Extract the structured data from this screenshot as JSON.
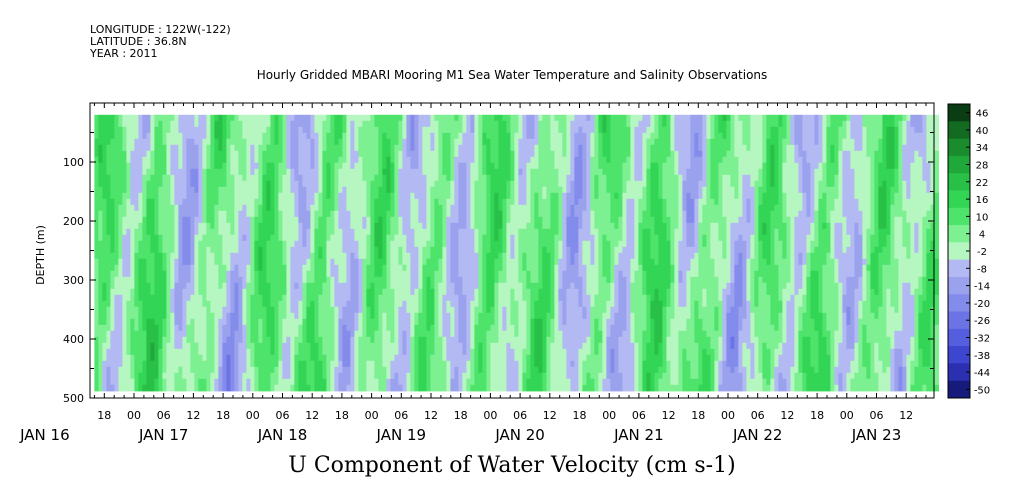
{
  "header": {
    "longitude": "LONGITUDE : 122W(-122)",
    "latitude": "LATITUDE : 36.8N",
    "year": "YEAR : 2011"
  },
  "chart_data": {
    "type": "heatmap",
    "title": "Hourly Gridded MBARI Mooring M1 Sea Water Temperature and Salinity Observations",
    "xlabel": "U Component of Water Velocity (cm s-1)",
    "ylabel": "DEPTH (m)",
    "ylim": [
      500,
      0
    ],
    "y_ticks": [
      100,
      200,
      300,
      400,
      500
    ],
    "x_hour_ticks": [
      "18",
      "00",
      "06",
      "12",
      "18",
      "00",
      "06",
      "12",
      "18",
      "00",
      "06",
      "12",
      "18",
      "00",
      "06",
      "12",
      "18",
      "00",
      "06",
      "12",
      "18",
      "00",
      "06",
      "12",
      "18",
      "00",
      "06",
      "12",
      "18",
      "00",
      "06",
      "12"
    ],
    "x_date_labels": [
      "JAN 16",
      "JAN 17",
      "JAN 18",
      "JAN 19",
      "JAN 20",
      "JAN 21",
      "JAN 22",
      "JAN 23"
    ],
    "colorbar_levels": [
      46,
      40,
      34,
      28,
      22,
      16,
      10,
      4,
      -2,
      -8,
      -14,
      -20,
      -26,
      -32,
      -38,
      -44,
      -50
    ],
    "colorbar_colors": [
      "#0b3d14",
      "#136b22",
      "#1a8c2e",
      "#20a83a",
      "#28c047",
      "#33d555",
      "#4ee46c",
      "#7df092",
      "#b6f6c0",
      "#b3b9f3",
      "#9aa2ee",
      "#838cea",
      "#6c74e5",
      "#555edf",
      "#3d46cf",
      "#2a30b0",
      "#161a7a"
    ],
    "depth_range_m": [
      20,
      480
    ],
    "time_range": [
      "2011-01-16 16:00",
      "2011-01-23 18:00"
    ],
    "velocity_range_cm_s": [
      -30,
      30
    ]
  }
}
